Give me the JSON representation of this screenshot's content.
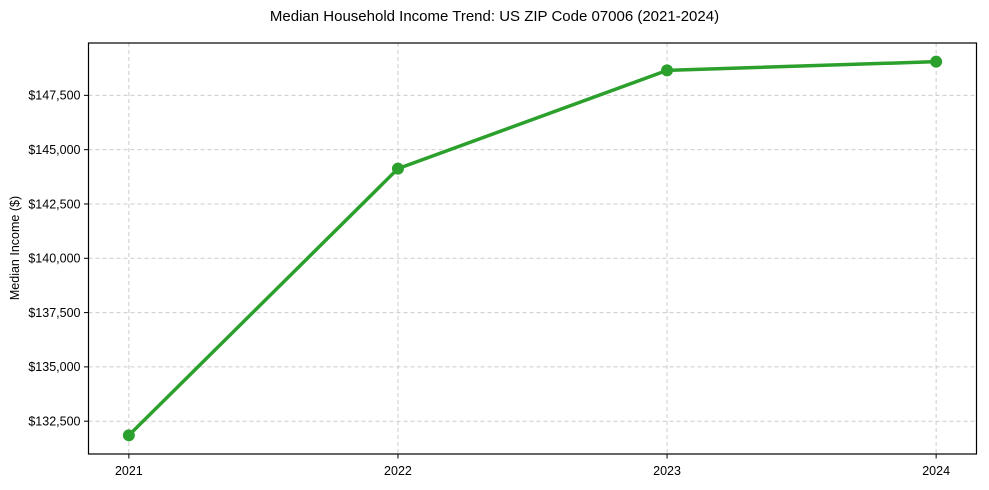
{
  "chart_data": {
    "type": "line",
    "title": "Median Household Income Trend: US ZIP Code 07006 (2021-2024)",
    "xlabel": "",
    "ylabel": "Median Income ($)",
    "x": [
      2021,
      2022,
      2023,
      2024
    ],
    "x_tick_labels": [
      "2021",
      "2022",
      "2023",
      "2024"
    ],
    "series": [
      {
        "values": [
          131850,
          144125,
          148650,
          149050
        ],
        "color": "#2ca02c",
        "marker": "circle",
        "line_width": 3.5,
        "marker_radius": 6
      }
    ],
    "y_ticks": [
      {
        "value": 132500,
        "label": "$132,500"
      },
      {
        "value": 135000,
        "label": "$135,000"
      },
      {
        "value": 137500,
        "label": "$137,500"
      },
      {
        "value": 140000,
        "label": "$140,000"
      },
      {
        "value": 142500,
        "label": "$142,500"
      },
      {
        "value": 145000,
        "label": "$145,000"
      },
      {
        "value": 147500,
        "label": "$147,500"
      }
    ],
    "ylim": [
      130990,
      149910
    ],
    "xlim": [
      2020.85,
      2024.15
    ],
    "grid": true,
    "grid_line_style": "dashed",
    "legend_position": "none",
    "colors": {
      "line": "#2ca02c",
      "grid": "#cccccc",
      "axis": "#000000",
      "text": "#000000",
      "background": "#ffffff"
    }
  }
}
